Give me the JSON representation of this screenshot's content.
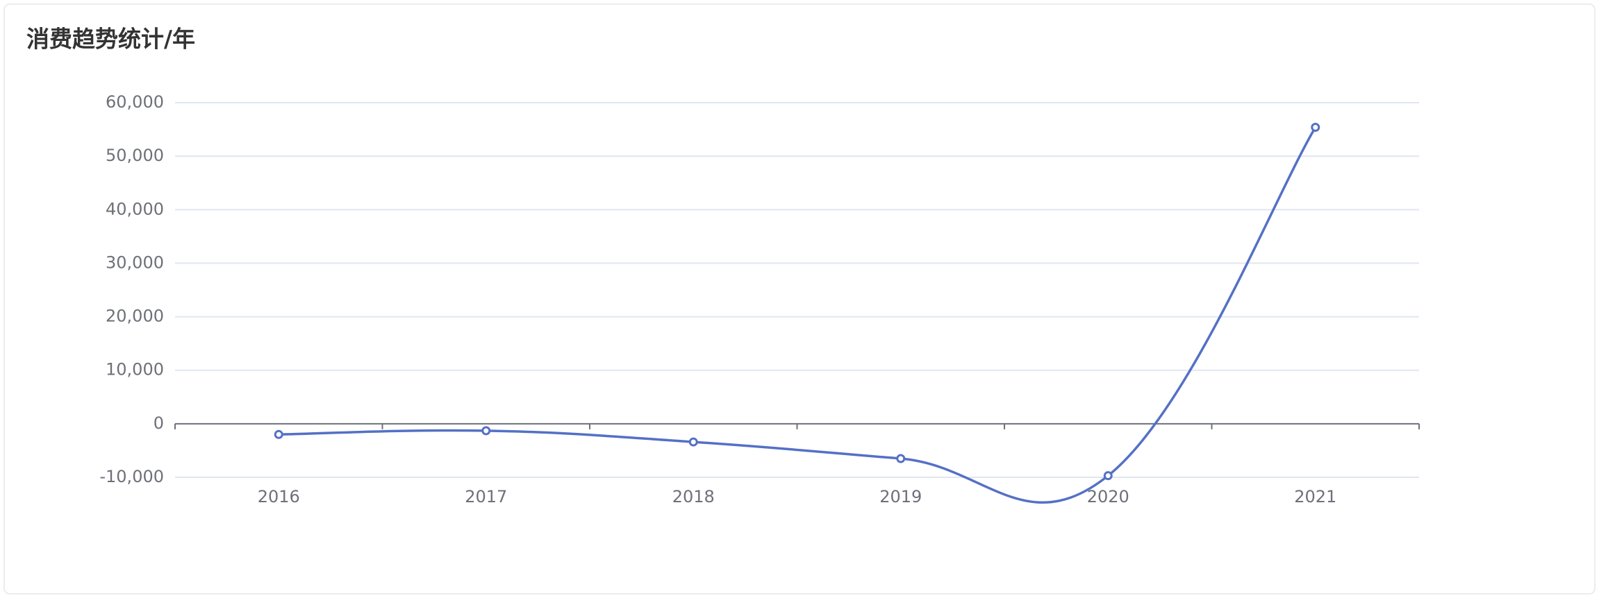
{
  "chart_data": {
    "type": "line",
    "title": "消费趋势统计/年",
    "categories": [
      "2016",
      "2017",
      "2018",
      "2019",
      "2020",
      "2021"
    ],
    "values": [
      -2000,
      -1300,
      -3400,
      -6500,
      -9700,
      55400
    ],
    "color": "#5470c6",
    "smooth": true,
    "grid": true,
    "ylim": [
      -10000,
      60000
    ],
    "yticks": [
      {
        "value": -10000,
        "label": "-10,000"
      },
      0,
      {
        "value": 10000,
        "label": "10,000"
      },
      {
        "value": 20000,
        "label": "20,000"
      },
      {
        "value": 30000,
        "label": "30,000"
      },
      {
        "value": 40000,
        "label": "40,000"
      },
      {
        "value": 50000,
        "label": "50,000"
      },
      {
        "value": 60000,
        "label": "60,000"
      }
    ]
  }
}
